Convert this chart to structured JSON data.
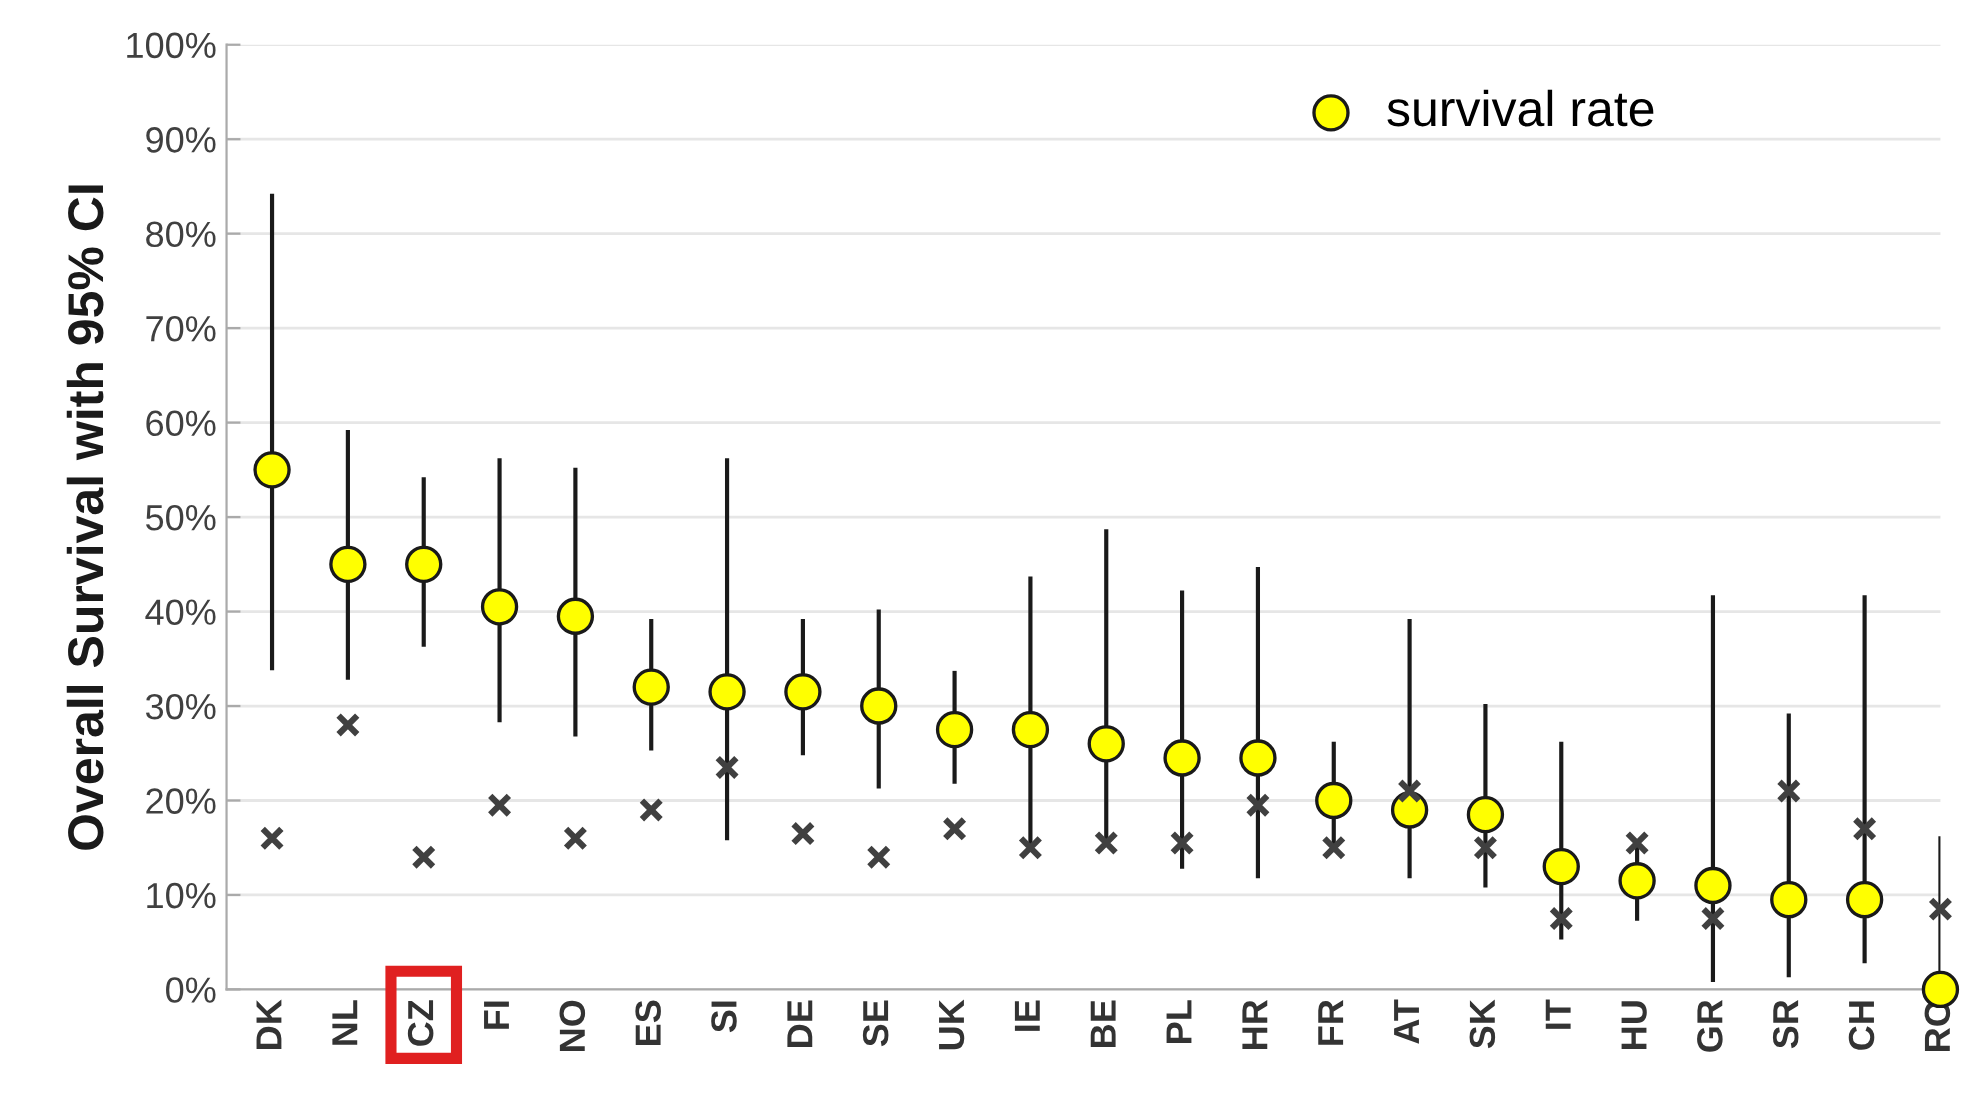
{
  "chart_data": {
    "type": "scatter",
    "ylabel": "Overall Survival with 95% CI",
    "categories": [
      "DK",
      "NL",
      "CZ",
      "FI",
      "NO",
      "ES",
      "SI",
      "DE",
      "SE",
      "UK",
      "IE",
      "BE",
      "PL",
      "HR",
      "FR",
      "AT",
      "SK",
      "IT",
      "HU",
      "GR",
      "SR",
      "CH",
      "RO"
    ],
    "series": [
      {
        "name": "survival rate",
        "color": "#ffff00",
        "marker": "circle",
        "values": [
          55,
          45,
          45,
          40.5,
          39.5,
          32,
          31.5,
          31.5,
          30,
          27.5,
          27.5,
          26,
          24.5,
          24.5,
          20,
          19,
          18.5,
          13,
          11.5,
          11,
          9.5,
          9.5,
          0
        ],
        "errors": [
          [
            34,
            84
          ],
          [
            33,
            59
          ],
          [
            36.5,
            54
          ],
          [
            28.5,
            56
          ],
          [
            27,
            55
          ],
          [
            25.5,
            39
          ],
          [
            16,
            56
          ],
          [
            25,
            39
          ],
          [
            21.5,
            40
          ],
          [
            22,
            33.5
          ],
          [
            15,
            43.5
          ],
          [
            15.5,
            48.5
          ],
          [
            13,
            42
          ],
          [
            12,
            44.5
          ],
          [
            15,
            26
          ],
          [
            12,
            39
          ],
          [
            11,
            30
          ],
          [
            5.5,
            26
          ],
          [
            7.5,
            15.5
          ],
          [
            1,
            41.5
          ],
          [
            1.5,
            29
          ],
          [
            3,
            41.5
          ],
          [
            0,
            16
          ]
        ]
      },
      {
        "color": "#404040",
        "marker": "cross",
        "values": [
          16,
          28,
          14,
          19.5,
          16,
          19,
          23.5,
          16.5,
          14,
          17,
          15,
          15.5,
          15.5,
          19.5,
          15,
          21,
          15,
          7.5,
          15.5,
          7.5,
          21,
          17,
          8.5
        ]
      }
    ],
    "ylim": [
      0,
      100
    ],
    "yticks": [
      {
        "value": 0,
        "label": "0%"
      },
      {
        "value": 10,
        "label": "10%"
      },
      {
        "value": 20,
        "label": "20%"
      },
      {
        "value": 30,
        "label": "30%"
      },
      {
        "value": 40,
        "label": "40%"
      },
      {
        "value": 50,
        "label": "50%"
      },
      {
        "value": 60,
        "label": "60%"
      },
      {
        "value": 70,
        "label": "70%"
      },
      {
        "value": 80,
        "label": "80%"
      },
      {
        "value": 90,
        "label": "90%"
      },
      {
        "value": 100,
        "label": "100%"
      }
    ],
    "grid": "y",
    "legend": "top right"
  }
}
